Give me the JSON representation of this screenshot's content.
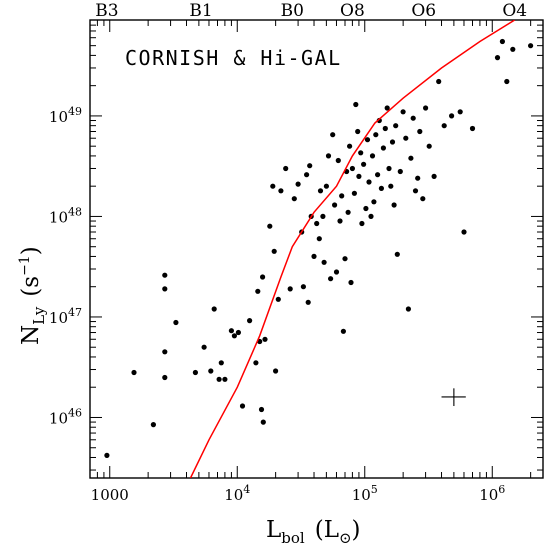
{
  "chart_data": {
    "type": "scatter",
    "title": "",
    "annotation": "CORNISH & Hi-GAL",
    "xlabel": {
      "main": "L",
      "sub": "bol",
      "unit_open": "(L",
      "unit_sub": "⊙",
      "unit_close": ")"
    },
    "ylabel": {
      "main": "N",
      "sub": "Ly",
      "unit": "(s",
      "unit_sup": "−1",
      "unit_close": ")"
    },
    "x_scale": "log",
    "y_scale": "log",
    "xlim": [
      700,
      2500000
    ],
    "ylim": [
      2.5e+45,
      9e+49
    ],
    "x_ticks": [
      {
        "value": 1000,
        "label": "1000"
      },
      {
        "value": 10000,
        "base": "10",
        "exp": "4"
      },
      {
        "value": 100000,
        "base": "10",
        "exp": "5"
      },
      {
        "value": 1000000,
        "base": "10",
        "exp": "6"
      }
    ],
    "y_ticks": [
      {
        "value": 1e+46,
        "base": "10",
        "exp": "46"
      },
      {
        "value": 1e+47,
        "base": "10",
        "exp": "47"
      },
      {
        "value": 1e+48,
        "base": "10",
        "exp": "48"
      },
      {
        "value": 1e+49,
        "base": "10",
        "exp": "49"
      }
    ],
    "top_axis_labels": [
      {
        "value": 950,
        "label": "B3"
      },
      {
        "value": 5200,
        "label": "B1"
      },
      {
        "value": 27000,
        "label": "B0"
      },
      {
        "value": 80000,
        "label": "O8"
      },
      {
        "value": 290000,
        "label": "O6"
      },
      {
        "value": 1500000,
        "label": "O4"
      }
    ],
    "grid": false,
    "series": [
      {
        "kind": "scatter",
        "color": "#000000",
        "points": [
          [
            950,
            4.2e+45
          ],
          [
            2200,
            8.5e+45
          ],
          [
            1550,
            2.8e+46
          ],
          [
            2700,
            2.5e+46
          ],
          [
            2700,
            4.5e+46
          ],
          [
            2700,
            1.9e+47
          ],
          [
            2700,
            2.6e+47
          ],
          [
            3300,
            8.8e+46
          ],
          [
            4700,
            2.8e+46
          ],
          [
            5500,
            5e+46
          ],
          [
            6200,
            2.9e+46
          ],
          [
            6600,
            1.2e+47
          ],
          [
            7200,
            2.4e+46
          ],
          [
            7500,
            3.5e+46
          ],
          [
            8000,
            2.4e+46
          ],
          [
            9000,
            7.3e+46
          ],
          [
            9500,
            6.5e+46
          ],
          [
            10200,
            7e+46
          ],
          [
            11000,
            1.3e+46
          ],
          [
            12500,
            9.2e+46
          ],
          [
            14000,
            3.5e+46
          ],
          [
            14500,
            1.8e+47
          ],
          [
            15000,
            5.7e+46
          ],
          [
            15500,
            1.2e+46
          ],
          [
            16000,
            9e+45
          ],
          [
            15800,
            2.5e+47
          ],
          [
            16500,
            6e+46
          ],
          [
            18000,
            8e+47
          ],
          [
            19000,
            2e+48
          ],
          [
            19500,
            4.5e+47
          ],
          [
            20000,
            2.9e+46
          ],
          [
            21000,
            1.5e+47
          ],
          [
            22000,
            1.8e+48
          ],
          [
            24000,
            3e+48
          ],
          [
            26000,
            1.9e+47
          ],
          [
            28000,
            1.5e+48
          ],
          [
            30000,
            2.1e+48
          ],
          [
            32000,
            7e+47
          ],
          [
            33000,
            2e+47
          ],
          [
            35000,
            2.6e+48
          ],
          [
            36000,
            1.4e+47
          ],
          [
            37000,
            3.2e+48
          ],
          [
            38000,
            1e+48
          ],
          [
            40000,
            4e+47
          ],
          [
            42000,
            8.5e+47
          ],
          [
            44000,
            6e+47
          ],
          [
            45000,
            1.8e+48
          ],
          [
            47000,
            1e+48
          ],
          [
            48000,
            3.5e+47
          ],
          [
            50000,
            2e+48
          ],
          [
            52000,
            4e+48
          ],
          [
            54000,
            2.4e+47
          ],
          [
            56000,
            6.5e+48
          ],
          [
            58000,
            1.3e+48
          ],
          [
            60000,
            2.8e+47
          ],
          [
            62000,
            3.6e+48
          ],
          [
            64000,
            9e+47
          ],
          [
            66000,
            1.6e+48
          ],
          [
            68000,
            7.2e+46
          ],
          [
            70000,
            3.8e+47
          ],
          [
            72000,
            2.8e+48
          ],
          [
            74000,
            1.1e+48
          ],
          [
            76000,
            5e+48
          ],
          [
            78000,
            2.2e+47
          ],
          [
            80000,
            3e+48
          ],
          [
            83000,
            1.7e+48
          ],
          [
            85000,
            1.3e+49
          ],
          [
            88000,
            7e+48
          ],
          [
            90000,
            2.5e+48
          ],
          [
            93000,
            4.3e+48
          ],
          [
            95000,
            8.5e+47
          ],
          [
            98000,
            3.3e+48
          ],
          [
            102000,
            1.2e+48
          ],
          [
            105000,
            5.8e+48
          ],
          [
            108000,
            2.2e+48
          ],
          [
            112000,
            1e+48
          ],
          [
            115000,
            4e+48
          ],
          [
            118000,
            1.4e+48
          ],
          [
            122000,
            6.5e+48
          ],
          [
            126000,
            2.6e+48
          ],
          [
            130000,
            9e+48
          ],
          [
            135000,
            1.9e+48
          ],
          [
            140000,
            4.8e+48
          ],
          [
            145000,
            7.5e+48
          ],
          [
            150000,
            1.2e+49
          ],
          [
            155000,
            3e+48
          ],
          [
            160000,
            2e+48
          ],
          [
            165000,
            5.5e+48
          ],
          [
            170000,
            1.3e+48
          ],
          [
            175000,
            8e+48
          ],
          [
            180000,
            4.2e+47
          ],
          [
            190000,
            2.8e+48
          ],
          [
            200000,
            1.1e+49
          ],
          [
            210000,
            6e+48
          ],
          [
            220000,
            1.2e+47
          ],
          [
            230000,
            3.8e+48
          ],
          [
            240000,
            9.5e+48
          ],
          [
            250000,
            1.8e+48
          ],
          [
            260000,
            2.4e+48
          ],
          [
            270000,
            7e+48
          ],
          [
            285000,
            1.5e+48
          ],
          [
            300000,
            1.2e+49
          ],
          [
            320000,
            5e+48
          ],
          [
            350000,
            2.5e+48
          ],
          [
            380000,
            2.2e+49
          ],
          [
            420000,
            8e+48
          ],
          [
            480000,
            1e+49
          ],
          [
            560000,
            1.1e+49
          ],
          [
            600000,
            7e+47
          ],
          [
            700000,
            7.5e+48
          ],
          [
            1100000,
            3.8e+49
          ],
          [
            1200000,
            5.5e+49
          ],
          [
            1300000,
            2.2e+49
          ],
          [
            1450000,
            4.6e+49
          ],
          [
            2000000,
            5e+49
          ]
        ]
      },
      {
        "kind": "line",
        "color": "#ff0000",
        "points": [
          [
            4300,
            2.5e+45
          ],
          [
            6000,
            6e+45
          ],
          [
            10000,
            2e+46
          ],
          [
            15000,
            6.5e+46
          ],
          [
            22000,
            2.5e+47
          ],
          [
            27000,
            5e+47
          ],
          [
            40000,
            1.1e+48
          ],
          [
            60000,
            2e+48
          ],
          [
            80000,
            4e+48
          ],
          [
            120000,
            8.5e+48
          ],
          [
            200000,
            1.5e+49
          ],
          [
            400000,
            3e+49
          ],
          [
            800000,
            5.5e+49
          ],
          [
            1500000,
            9e+49
          ]
        ]
      }
    ],
    "error_bar": {
      "x": 500000,
      "y": 1.6e+46,
      "x_err": [
        400000,
        620000
      ],
      "y_err": [
        1.3e+46,
        1.95e+46
      ]
    }
  }
}
